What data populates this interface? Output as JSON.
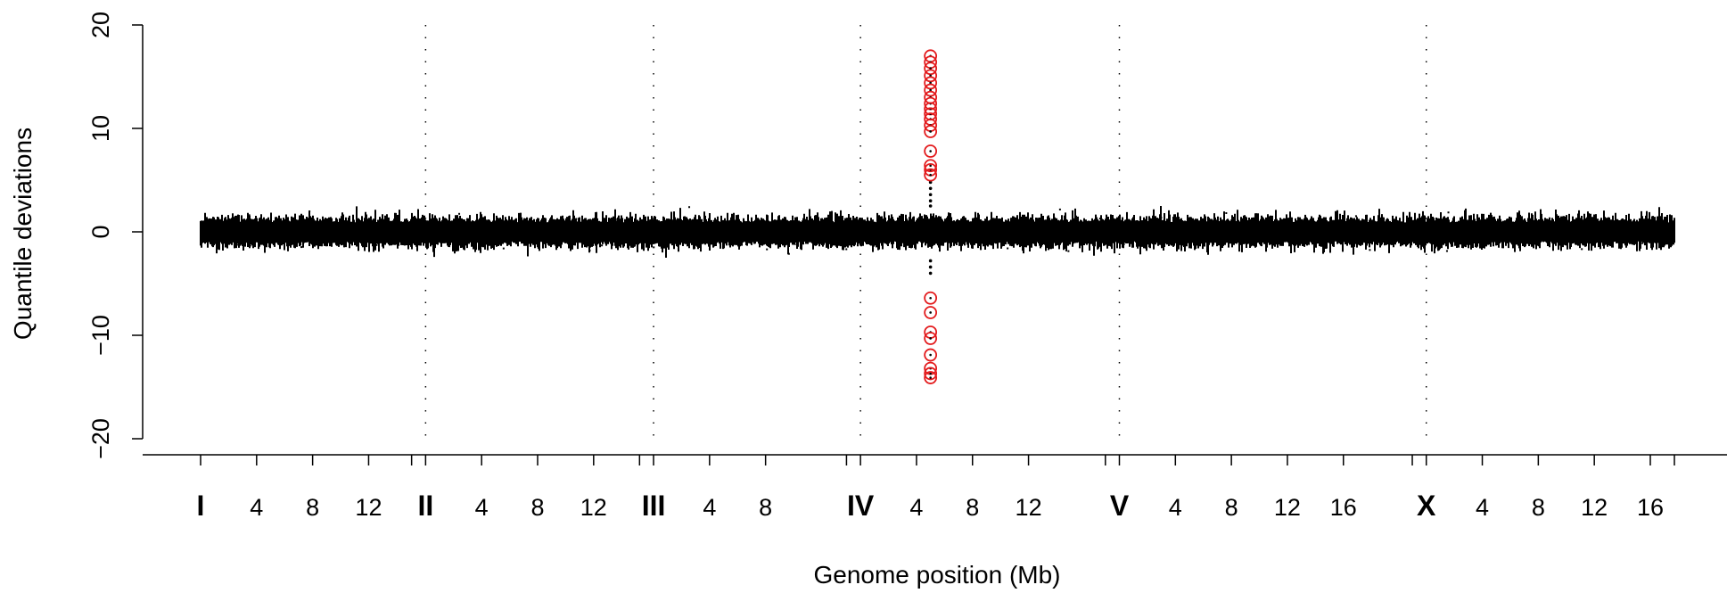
{
  "chart_data": {
    "type": "scatter",
    "title": "",
    "xlabel": "Genome position (Mb)",
    "ylabel": "Quantile deviations",
    "ylim": [
      -20,
      20
    ],
    "y_ticks": [
      -20,
      -10,
      0,
      10,
      20
    ],
    "y_tick_labels": [
      "−20",
      "−10",
      "0",
      "10",
      "20"
    ],
    "chromosomes": [
      {
        "name": "I",
        "length_mb": 15.07,
        "ticks_mb": [
          4,
          8,
          12
        ]
      },
      {
        "name": "II",
        "length_mb": 15.28,
        "ticks_mb": [
          4,
          8,
          12
        ]
      },
      {
        "name": "III",
        "length_mb": 13.78,
        "ticks_mb": [
          4,
          8
        ]
      },
      {
        "name": "IV",
        "length_mb": 17.49,
        "ticks_mb": [
          4,
          8,
          12
        ]
      },
      {
        "name": "V",
        "length_mb": 20.92,
        "ticks_mb": [
          4,
          8,
          12,
          16
        ]
      },
      {
        "name": "X",
        "length_mb": 17.72,
        "ticks_mb": [
          4,
          8,
          12,
          16
        ]
      }
    ],
    "chromosome_separators": "dotted vertical lines",
    "grid": false,
    "series": [
      {
        "color": "#000000",
        "description_values": "band of points around 0",
        "y_range": [
          -2.5,
          2.5
        ]
      },
      {
        "color": "#e31a1c",
        "marker": "open circle",
        "chromosome": "IV",
        "position_mb": 5.0,
        "values": [
          17.0,
          16.4,
          15.8,
          15.1,
          14.4,
          13.7,
          13.0,
          12.4,
          11.9,
          11.4,
          10.9,
          10.3,
          9.7,
          7.8,
          6.4,
          6.0,
          5.5,
          -6.4,
          -7.8,
          -9.7,
          -10.3,
          -11.9,
          -13.2,
          -13.7,
          -14.1
        ]
      }
    ],
    "intermediate_points": {
      "chromosome": "IV",
      "position_mb": 5.0,
      "values": [
        2.5,
        3.0,
        3.6,
        4.2,
        4.8,
        -2.8,
        -3.4,
        -4.0
      ]
    }
  }
}
